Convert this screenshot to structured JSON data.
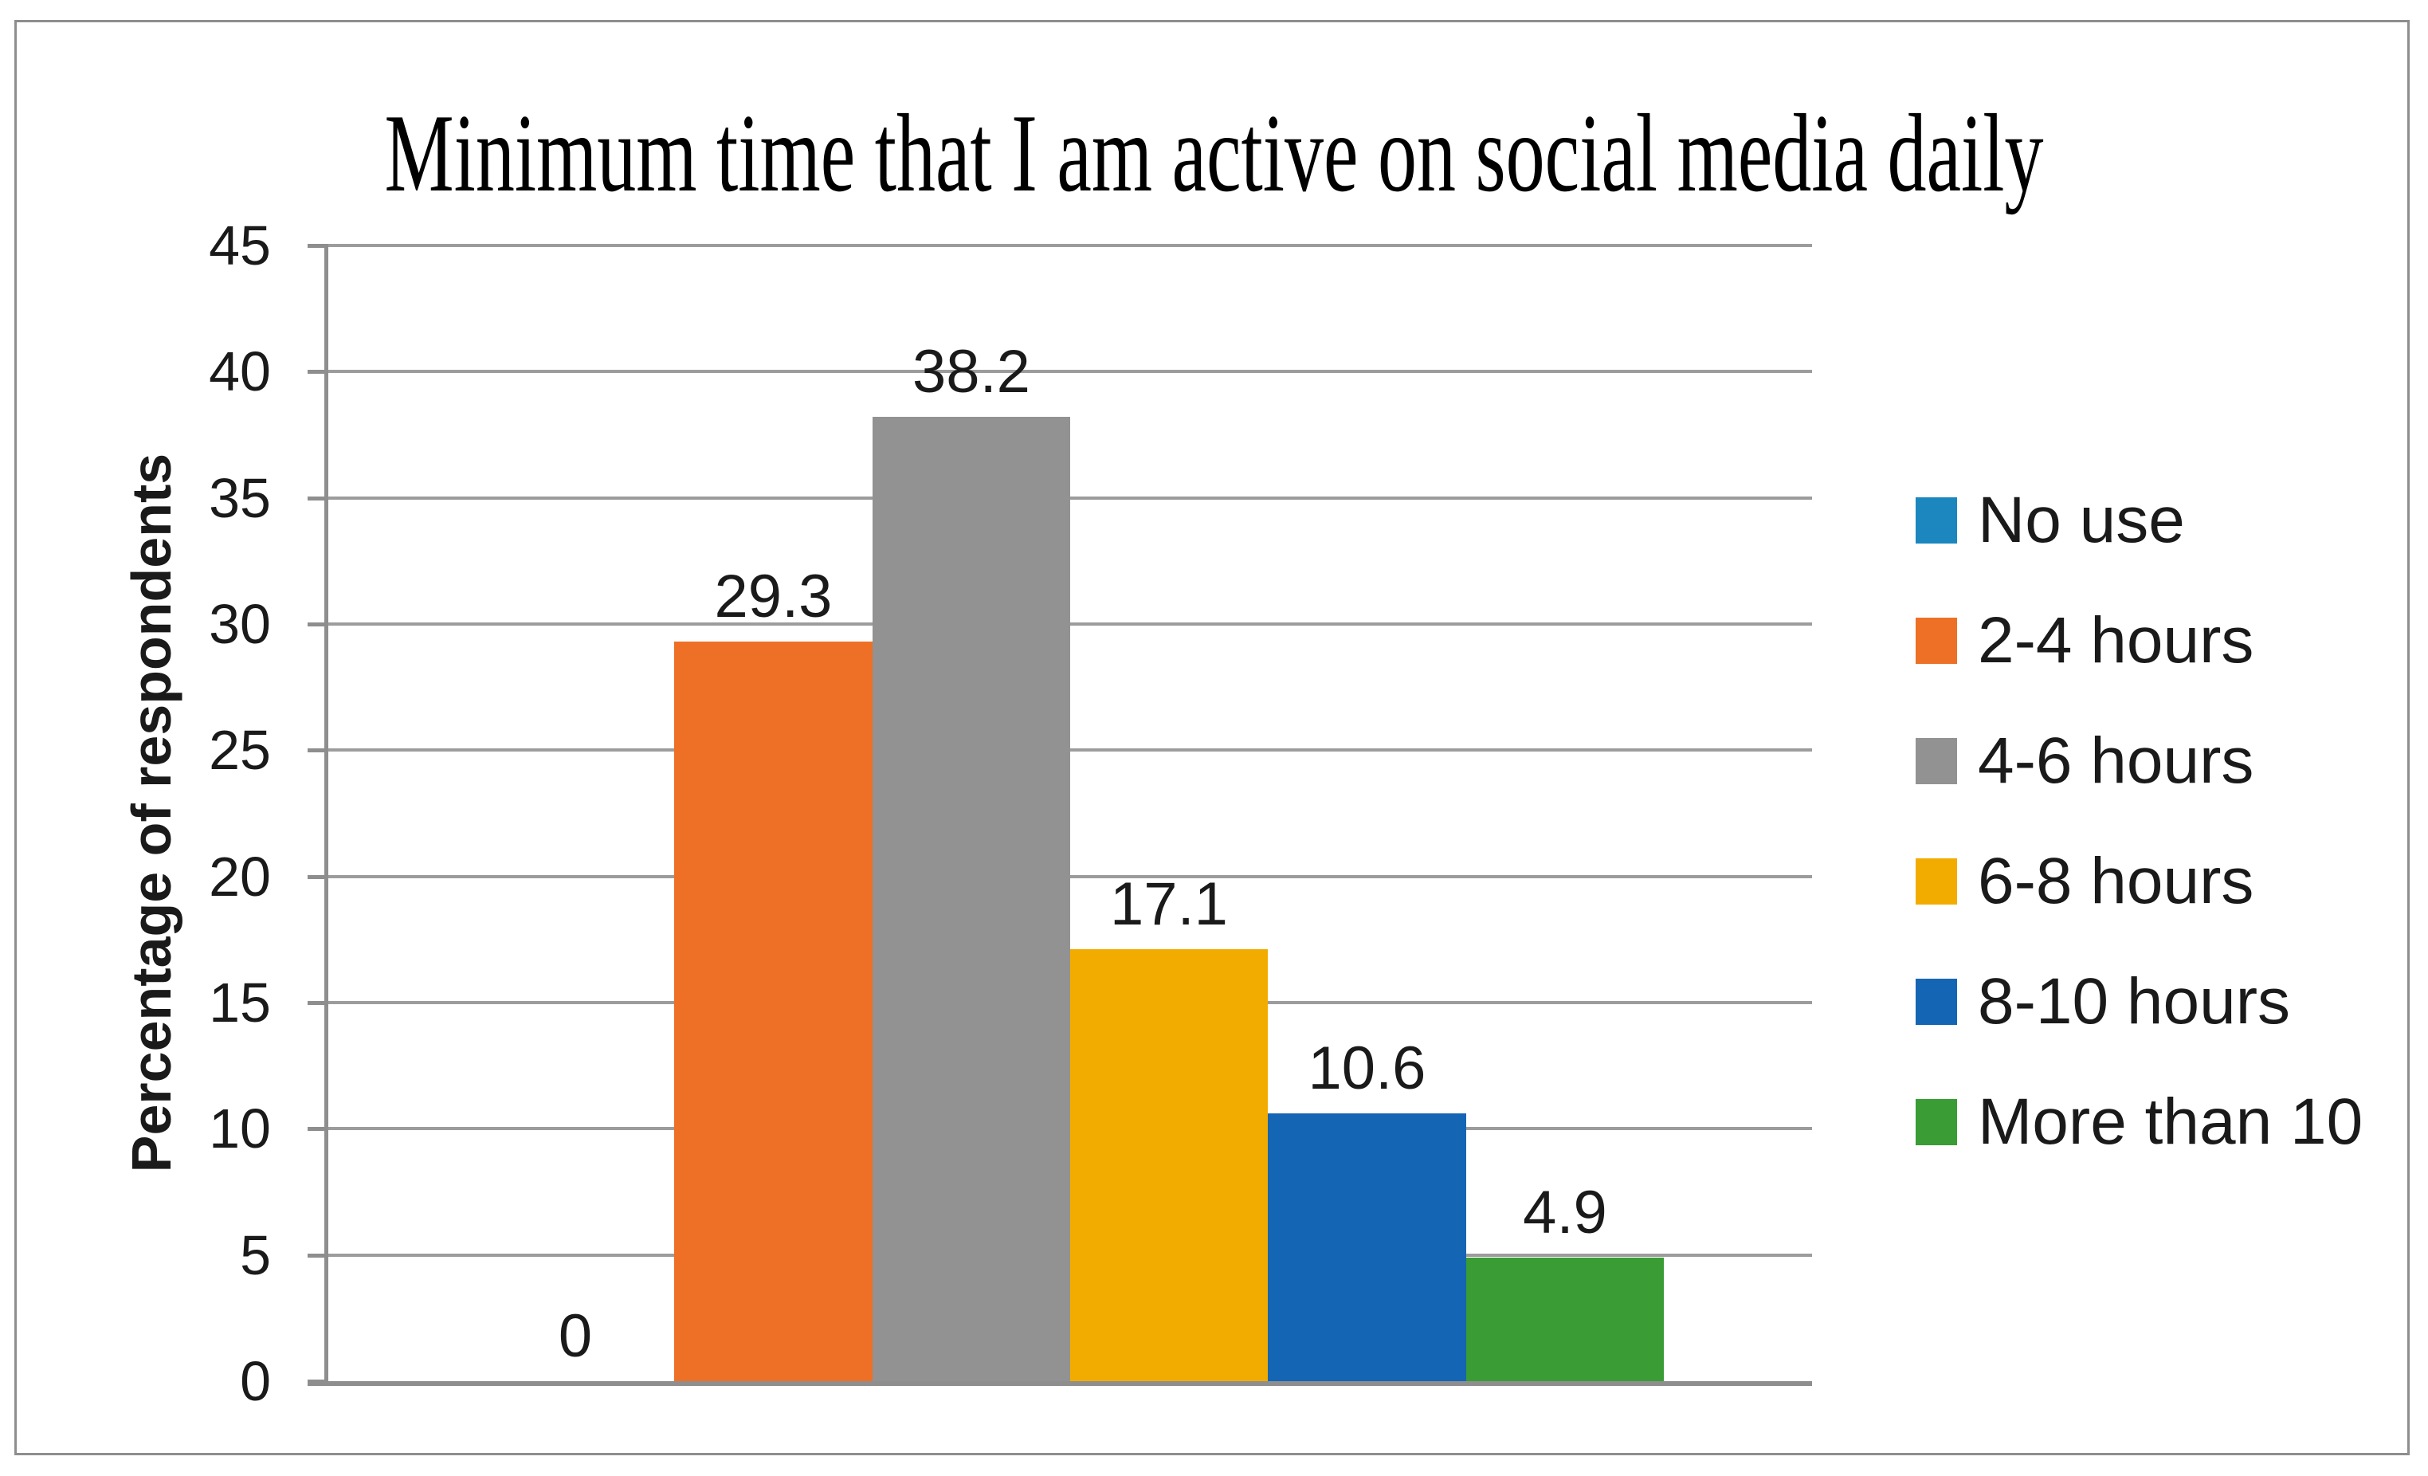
{
  "figure": {
    "background": "#ffffff",
    "border_color": "#8e8e8e"
  },
  "chart_data": {
    "type": "bar",
    "title": "Minimum time that I am active on social media daily",
    "ylabel": "Percentage of respondents",
    "xlabel": "",
    "categories": [
      "No use",
      "2-4 hours",
      "4-6 hours",
      "6-8 hours",
      "8-10 hours",
      "More than 10"
    ],
    "values": [
      0,
      29.3,
      38.2,
      17.1,
      10.6,
      4.9
    ],
    "series_colors": [
      "#1b87be",
      "#ed7026",
      "#929292",
      "#f2ac00",
      "#1565b5",
      "#3a9c35"
    ],
    "ylim": [
      0,
      45
    ],
    "ytick_step": 5,
    "yticks": [
      45,
      40,
      35,
      30,
      25,
      20,
      15,
      10,
      5,
      0
    ],
    "grid": true,
    "grid_color": "#9c9c9c",
    "axis_color": "#8e8e8e",
    "legend_position": "right"
  }
}
